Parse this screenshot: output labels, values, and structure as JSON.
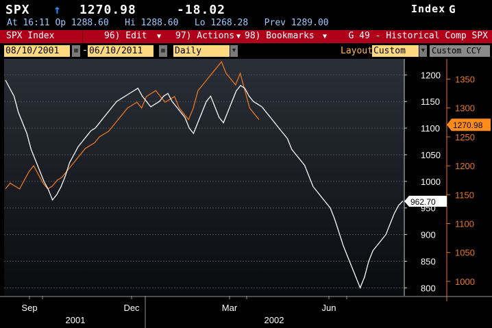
{
  "header": {
    "ticker": "SPX",
    "arrow": "↑",
    "last": "1270.98",
    "change": "-18.02",
    "index_label": "Index",
    "index_tag": "G",
    "time_line": "At 16:11 Op 1288.60   Hi 1288.60   Lo 1268.28   Prev 1289.00"
  },
  "menubar": {
    "security": "SPX Index",
    "edit": "96) Edit",
    "actions": "97) Actions",
    "bookmarks": "98) Bookmarks",
    "function_title": "G 49 - Historical Comp SPX"
  },
  "controls": {
    "start_date": "08/10/2001",
    "end_date": "06/10/2011",
    "period": "Daily",
    "layout_label": "Layout",
    "layout_value": "Custom",
    "currency": "Custom CCY"
  },
  "colors": {
    "menu_red": "#b0001a",
    "field_yellow": "#ffd980",
    "orange_series": "#e8771f",
    "white_series": "#ffffff",
    "accent_orange": "#ff8c1a"
  },
  "chart_data": {
    "type": "line",
    "x_labels": [
      "Sep",
      "Dec",
      "Mar",
      "Jun"
    ],
    "x_year_labels": [
      "2001",
      "2002"
    ],
    "left_axis": {
      "ticks": [
        800,
        850,
        900,
        950,
        1000,
        1050,
        1100,
        1150,
        1200
      ],
      "range": [
        785,
        1230
      ]
    },
    "right_axis": {
      "ticks": [
        1000,
        1050,
        1100,
        1150,
        1200,
        1250,
        1300,
        1350
      ],
      "range": [
        975,
        1385
      ]
    },
    "last_label_left": "962.70",
    "last_label_right": "1270.98",
    "series": [
      {
        "axis": "left",
        "color": "#ffffff",
        "values": [
          1190,
          1175,
          1160,
          1130,
          1110,
          1090,
          1060,
          1040,
          1020,
          1000,
          985,
          965,
          975,
          990,
          1010,
          1035,
          1050,
          1065,
          1075,
          1085,
          1095,
          1100,
          1110,
          1120,
          1130,
          1140,
          1150,
          1155,
          1160,
          1165,
          1170,
          1175,
          1160,
          1150,
          1140,
          1145,
          1150,
          1160,
          1165,
          1150,
          1140,
          1130,
          1120,
          1100,
          1090,
          1110,
          1130,
          1150,
          1160,
          1140,
          1120,
          1110,
          1130,
          1150,
          1170,
          1180,
          1175,
          1160,
          1150,
          1145,
          1140,
          1130,
          1120,
          1110,
          1100,
          1090,
          1080,
          1060,
          1050,
          1040,
          1030,
          1010,
          990,
          980,
          970,
          960,
          950,
          930,
          905,
          880,
          860,
          840,
          820,
          800,
          820,
          850,
          870,
          880,
          890,
          900,
          920,
          940,
          955,
          963
        ]
      },
      {
        "axis": "right",
        "color": "#e8771f",
        "values": [
          1160,
          1170,
          1165,
          1160,
          1175,
          1190,
          1200,
          1185,
          1170,
          1160,
          1165,
          1175,
          1180,
          1190,
          1200,
          1210,
          1220,
          1230,
          1235,
          1240,
          1250,
          1255,
          1260,
          1270,
          1280,
          1290,
          1300,
          1305,
          1310,
          1300,
          1320,
          1325,
          1330,
          1320,
          1310,
          1315,
          1320,
          1300,
          1290,
          1280,
          1300,
          1330,
          1340,
          1350,
          1360,
          1370,
          1380,
          1360,
          1350,
          1340,
          1360,
          1330,
          1300,
          1290,
          1280
        ]
      }
    ]
  }
}
